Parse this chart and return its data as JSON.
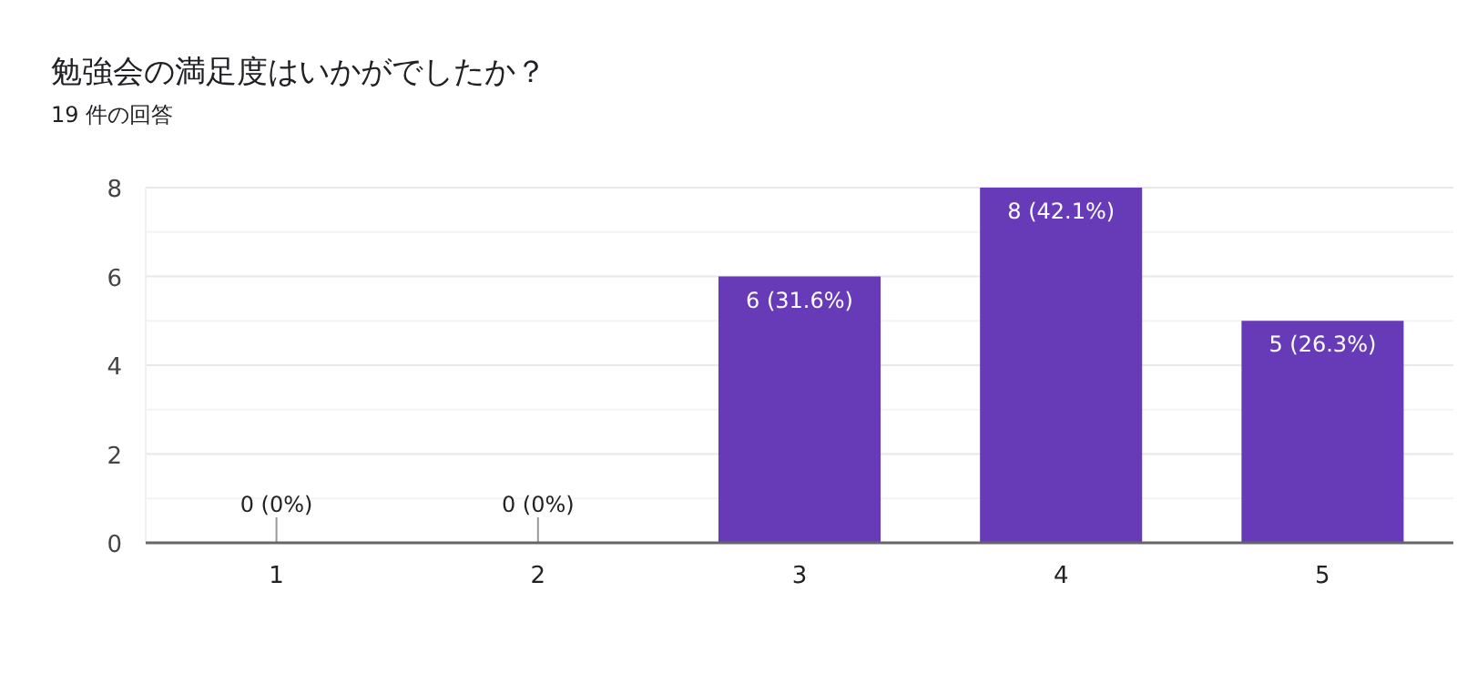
{
  "chart_data": {
    "type": "bar",
    "title": "勉強会の満足度はいかがでしたか？",
    "subtitle": "19 件の回答",
    "categories": [
      "1",
      "2",
      "3",
      "4",
      "5"
    ],
    "values": [
      0,
      0,
      6,
      8,
      5
    ],
    "value_labels": [
      "0 (0%)",
      "0 (0%)",
      "6 (31.6%)",
      "8 (42.1%)",
      "5 (26.3%)"
    ],
    "color": "#673ab7",
    "ylim": [
      0,
      8
    ],
    "yticks": [
      0,
      {
        "value": 1,
        "label": null
      },
      2,
      {
        "value": 3,
        "label": null
      },
      4,
      {
        "value": 5,
        "label": null
      },
      6,
      {
        "value": 7,
        "label": null
      },
      8
    ],
    "grid": "y"
  }
}
